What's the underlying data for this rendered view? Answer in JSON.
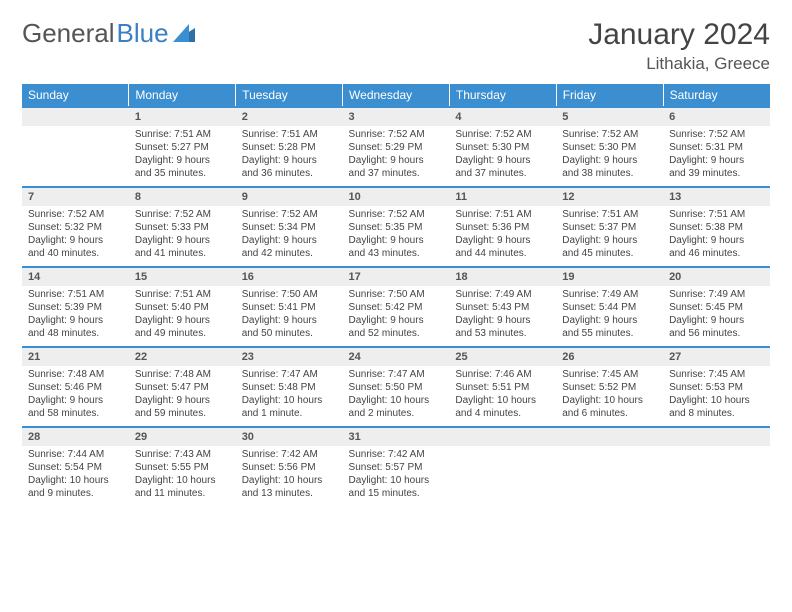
{
  "brand": {
    "part1": "General",
    "part2": "Blue"
  },
  "title": "January 2024",
  "location": "Lithakia, Greece",
  "colors": {
    "header_bg": "#3b8ed0",
    "header_text": "#ffffff",
    "daynum_bg": "#eeeeee",
    "row_border": "#3b8ed0",
    "text": "#444444",
    "page_bg": "#ffffff",
    "logo_gray": "#555555",
    "logo_blue": "#3b7fc4"
  },
  "day_headers": [
    "Sunday",
    "Monday",
    "Tuesday",
    "Wednesday",
    "Thursday",
    "Friday",
    "Saturday"
  ],
  "weeks": [
    {
      "days": [
        {
          "num": "",
          "lines": []
        },
        {
          "num": "1",
          "lines": [
            "Sunrise: 7:51 AM",
            "Sunset: 5:27 PM",
            "Daylight: 9 hours",
            "and 35 minutes."
          ]
        },
        {
          "num": "2",
          "lines": [
            "Sunrise: 7:51 AM",
            "Sunset: 5:28 PM",
            "Daylight: 9 hours",
            "and 36 minutes."
          ]
        },
        {
          "num": "3",
          "lines": [
            "Sunrise: 7:52 AM",
            "Sunset: 5:29 PM",
            "Daylight: 9 hours",
            "and 37 minutes."
          ]
        },
        {
          "num": "4",
          "lines": [
            "Sunrise: 7:52 AM",
            "Sunset: 5:30 PM",
            "Daylight: 9 hours",
            "and 37 minutes."
          ]
        },
        {
          "num": "5",
          "lines": [
            "Sunrise: 7:52 AM",
            "Sunset: 5:30 PM",
            "Daylight: 9 hours",
            "and 38 minutes."
          ]
        },
        {
          "num": "6",
          "lines": [
            "Sunrise: 7:52 AM",
            "Sunset: 5:31 PM",
            "Daylight: 9 hours",
            "and 39 minutes."
          ]
        }
      ]
    },
    {
      "days": [
        {
          "num": "7",
          "lines": [
            "Sunrise: 7:52 AM",
            "Sunset: 5:32 PM",
            "Daylight: 9 hours",
            "and 40 minutes."
          ]
        },
        {
          "num": "8",
          "lines": [
            "Sunrise: 7:52 AM",
            "Sunset: 5:33 PM",
            "Daylight: 9 hours",
            "and 41 minutes."
          ]
        },
        {
          "num": "9",
          "lines": [
            "Sunrise: 7:52 AM",
            "Sunset: 5:34 PM",
            "Daylight: 9 hours",
            "and 42 minutes."
          ]
        },
        {
          "num": "10",
          "lines": [
            "Sunrise: 7:52 AM",
            "Sunset: 5:35 PM",
            "Daylight: 9 hours",
            "and 43 minutes."
          ]
        },
        {
          "num": "11",
          "lines": [
            "Sunrise: 7:51 AM",
            "Sunset: 5:36 PM",
            "Daylight: 9 hours",
            "and 44 minutes."
          ]
        },
        {
          "num": "12",
          "lines": [
            "Sunrise: 7:51 AM",
            "Sunset: 5:37 PM",
            "Daylight: 9 hours",
            "and 45 minutes."
          ]
        },
        {
          "num": "13",
          "lines": [
            "Sunrise: 7:51 AM",
            "Sunset: 5:38 PM",
            "Daylight: 9 hours",
            "and 46 minutes."
          ]
        }
      ]
    },
    {
      "days": [
        {
          "num": "14",
          "lines": [
            "Sunrise: 7:51 AM",
            "Sunset: 5:39 PM",
            "Daylight: 9 hours",
            "and 48 minutes."
          ]
        },
        {
          "num": "15",
          "lines": [
            "Sunrise: 7:51 AM",
            "Sunset: 5:40 PM",
            "Daylight: 9 hours",
            "and 49 minutes."
          ]
        },
        {
          "num": "16",
          "lines": [
            "Sunrise: 7:50 AM",
            "Sunset: 5:41 PM",
            "Daylight: 9 hours",
            "and 50 minutes."
          ]
        },
        {
          "num": "17",
          "lines": [
            "Sunrise: 7:50 AM",
            "Sunset: 5:42 PM",
            "Daylight: 9 hours",
            "and 52 minutes."
          ]
        },
        {
          "num": "18",
          "lines": [
            "Sunrise: 7:49 AM",
            "Sunset: 5:43 PM",
            "Daylight: 9 hours",
            "and 53 minutes."
          ]
        },
        {
          "num": "19",
          "lines": [
            "Sunrise: 7:49 AM",
            "Sunset: 5:44 PM",
            "Daylight: 9 hours",
            "and 55 minutes."
          ]
        },
        {
          "num": "20",
          "lines": [
            "Sunrise: 7:49 AM",
            "Sunset: 5:45 PM",
            "Daylight: 9 hours",
            "and 56 minutes."
          ]
        }
      ]
    },
    {
      "days": [
        {
          "num": "21",
          "lines": [
            "Sunrise: 7:48 AM",
            "Sunset: 5:46 PM",
            "Daylight: 9 hours",
            "and 58 minutes."
          ]
        },
        {
          "num": "22",
          "lines": [
            "Sunrise: 7:48 AM",
            "Sunset: 5:47 PM",
            "Daylight: 9 hours",
            "and 59 minutes."
          ]
        },
        {
          "num": "23",
          "lines": [
            "Sunrise: 7:47 AM",
            "Sunset: 5:48 PM",
            "Daylight: 10 hours",
            "and 1 minute."
          ]
        },
        {
          "num": "24",
          "lines": [
            "Sunrise: 7:47 AM",
            "Sunset: 5:50 PM",
            "Daylight: 10 hours",
            "and 2 minutes."
          ]
        },
        {
          "num": "25",
          "lines": [
            "Sunrise: 7:46 AM",
            "Sunset: 5:51 PM",
            "Daylight: 10 hours",
            "and 4 minutes."
          ]
        },
        {
          "num": "26",
          "lines": [
            "Sunrise: 7:45 AM",
            "Sunset: 5:52 PM",
            "Daylight: 10 hours",
            "and 6 minutes."
          ]
        },
        {
          "num": "27",
          "lines": [
            "Sunrise: 7:45 AM",
            "Sunset: 5:53 PM",
            "Daylight: 10 hours",
            "and 8 minutes."
          ]
        }
      ]
    },
    {
      "days": [
        {
          "num": "28",
          "lines": [
            "Sunrise: 7:44 AM",
            "Sunset: 5:54 PM",
            "Daylight: 10 hours",
            "and 9 minutes."
          ]
        },
        {
          "num": "29",
          "lines": [
            "Sunrise: 7:43 AM",
            "Sunset: 5:55 PM",
            "Daylight: 10 hours",
            "and 11 minutes."
          ]
        },
        {
          "num": "30",
          "lines": [
            "Sunrise: 7:42 AM",
            "Sunset: 5:56 PM",
            "Daylight: 10 hours",
            "and 13 minutes."
          ]
        },
        {
          "num": "31",
          "lines": [
            "Sunrise: 7:42 AM",
            "Sunset: 5:57 PM",
            "Daylight: 10 hours",
            "and 15 minutes."
          ]
        },
        {
          "num": "",
          "lines": []
        },
        {
          "num": "",
          "lines": []
        },
        {
          "num": "",
          "lines": []
        }
      ]
    }
  ]
}
